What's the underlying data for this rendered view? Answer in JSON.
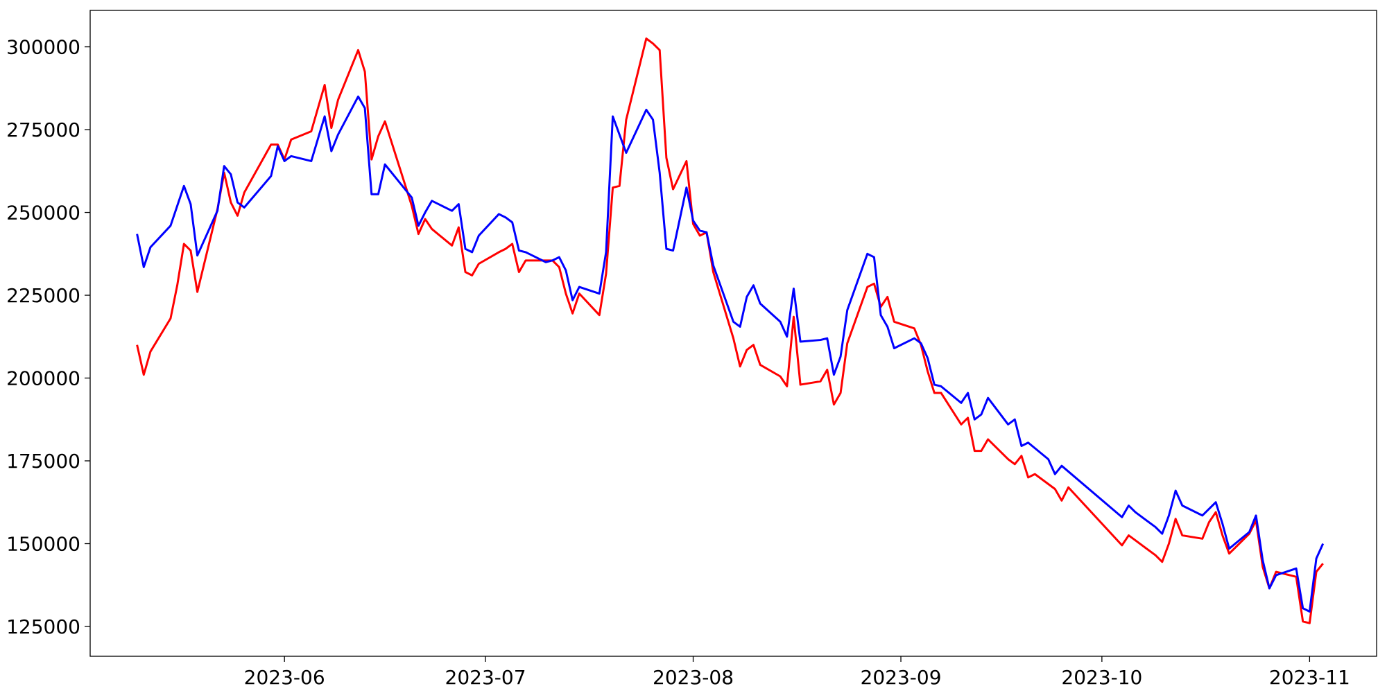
{
  "chart_data": {
    "type": "line",
    "title": "",
    "xlabel": "",
    "ylabel": "",
    "x_axis": {
      "type": "date",
      "range": [
        "2023-05-03",
        "2023-11-11"
      ],
      "ticks": [
        "2023-06-01",
        "2023-07-01",
        "2023-08-01",
        "2023-09-01",
        "2023-10-01",
        "2023-11-01"
      ],
      "tick_labels": [
        "2023-06",
        "2023-07",
        "2023-08",
        "2023-09",
        "2023-10",
        "2023-11"
      ]
    },
    "y_axis": {
      "range": [
        116000,
        311000
      ],
      "ticks": [
        125000,
        150000,
        175000,
        200000,
        225000,
        250000,
        275000,
        300000
      ],
      "tick_labels": [
        "125000",
        "150000",
        "175000",
        "200000",
        "225000",
        "250000",
        "275000",
        "300000"
      ]
    },
    "grid": false,
    "legend": "none",
    "series": [
      {
        "color": "#ff0000",
        "points": [
          [
            "2023-05-10",
            210000
          ],
          [
            "2023-05-11",
            201000
          ],
          [
            "2023-05-12",
            208000
          ],
          [
            "2023-05-15",
            218000
          ],
          [
            "2023-05-16",
            228000
          ],
          [
            "2023-05-17",
            240500
          ],
          [
            "2023-05-18",
            238500
          ],
          [
            "2023-05-19",
            226000
          ],
          [
            "2023-05-22",
            251000
          ],
          [
            "2023-05-23",
            262000
          ],
          [
            "2023-05-24",
            253000
          ],
          [
            "2023-05-25",
            249000
          ],
          [
            "2023-05-26",
            256000
          ],
          [
            "2023-05-30",
            270500
          ],
          [
            "2023-05-31",
            270500
          ],
          [
            "2023-06-01",
            266000
          ],
          [
            "2023-06-02",
            272000
          ],
          [
            "2023-06-05",
            274500
          ],
          [
            "2023-06-07",
            288500
          ],
          [
            "2023-06-08",
            275500
          ],
          [
            "2023-06-09",
            284000
          ],
          [
            "2023-06-12",
            299000
          ],
          [
            "2023-06-13",
            292500
          ],
          [
            "2023-06-14",
            266000
          ],
          [
            "2023-06-15",
            273000
          ],
          [
            "2023-06-16",
            277500
          ],
          [
            "2023-06-20",
            252000
          ],
          [
            "2023-06-21",
            243500
          ],
          [
            "2023-06-22",
            248000
          ],
          [
            "2023-06-23",
            245000
          ],
          [
            "2023-06-26",
            240000
          ],
          [
            "2023-06-27",
            245500
          ],
          [
            "2023-06-28",
            232000
          ],
          [
            "2023-06-29",
            231000
          ],
          [
            "2023-06-30",
            234500
          ],
          [
            "2023-07-03",
            238000
          ],
          [
            "2023-07-04",
            239000
          ],
          [
            "2023-07-05",
            240500
          ],
          [
            "2023-07-06",
            232000
          ],
          [
            "2023-07-07",
            235500
          ],
          [
            "2023-07-10",
            235500
          ],
          [
            "2023-07-11",
            235500
          ],
          [
            "2023-07-12",
            233500
          ],
          [
            "2023-07-13",
            225500
          ],
          [
            "2023-07-14",
            219500
          ],
          [
            "2023-07-15",
            225500
          ],
          [
            "2023-07-18",
            219000
          ],
          [
            "2023-07-19",
            231500
          ],
          [
            "2023-07-20",
            257500
          ],
          [
            "2023-07-21",
            258000
          ],
          [
            "2023-07-22",
            278000
          ],
          [
            "2023-07-25",
            302500
          ],
          [
            "2023-07-26",
            301000
          ],
          [
            "2023-07-27",
            299000
          ],
          [
            "2023-07-28",
            266500
          ],
          [
            "2023-07-29",
            257000
          ],
          [
            "2023-07-31",
            265500
          ],
          [
            "2023-08-01",
            246500
          ],
          [
            "2023-08-02",
            243000
          ],
          [
            "2023-08-03",
            244000
          ],
          [
            "2023-08-04",
            232000
          ],
          [
            "2023-08-07",
            212000
          ],
          [
            "2023-08-08",
            203500
          ],
          [
            "2023-08-09",
            208500
          ],
          [
            "2023-08-10",
            210000
          ],
          [
            "2023-08-11",
            204000
          ],
          [
            "2023-08-14",
            200500
          ],
          [
            "2023-08-15",
            197500
          ],
          [
            "2023-08-16",
            218500
          ],
          [
            "2023-08-17",
            198000
          ],
          [
            "2023-08-20",
            199000
          ],
          [
            "2023-08-21",
            202500
          ],
          [
            "2023-08-22",
            192000
          ],
          [
            "2023-08-23",
            195500
          ],
          [
            "2023-08-24",
            210500
          ],
          [
            "2023-08-27",
            227500
          ],
          [
            "2023-08-28",
            228500
          ],
          [
            "2023-08-29",
            221500
          ],
          [
            "2023-08-30",
            224500
          ],
          [
            "2023-08-31",
            217000
          ],
          [
            "2023-09-03",
            215000
          ],
          [
            "2023-09-04",
            210000
          ],
          [
            "2023-09-05",
            202000
          ],
          [
            "2023-09-06",
            195500
          ],
          [
            "2023-09-07",
            195500
          ],
          [
            "2023-09-10",
            186000
          ],
          [
            "2023-09-11",
            188000
          ],
          [
            "2023-09-12",
            178000
          ],
          [
            "2023-09-13",
            178000
          ],
          [
            "2023-09-14",
            181500
          ],
          [
            "2023-09-17",
            175500
          ],
          [
            "2023-09-18",
            174000
          ],
          [
            "2023-09-19",
            176500
          ],
          [
            "2023-09-20",
            170000
          ],
          [
            "2023-09-21",
            171000
          ],
          [
            "2023-09-24",
            166500
          ],
          [
            "2023-09-25",
            163000
          ],
          [
            "2023-09-26",
            167000
          ],
          [
            "2023-10-04",
            149500
          ],
          [
            "2023-10-05",
            152500
          ],
          [
            "2023-10-06",
            151000
          ],
          [
            "2023-10-09",
            146500
          ],
          [
            "2023-10-10",
            144500
          ],
          [
            "2023-10-11",
            150000
          ],
          [
            "2023-10-12",
            157500
          ],
          [
            "2023-10-13",
            152500
          ],
          [
            "2023-10-16",
            151500
          ],
          [
            "2023-10-17",
            156500
          ],
          [
            "2023-10-18",
            159500
          ],
          [
            "2023-10-19",
            152500
          ],
          [
            "2023-10-20",
            147000
          ],
          [
            "2023-10-23",
            153000
          ],
          [
            "2023-10-24",
            157000
          ],
          [
            "2023-10-25",
            143000
          ],
          [
            "2023-10-26",
            136500
          ],
          [
            "2023-10-27",
            141500
          ],
          [
            "2023-10-30",
            140000
          ],
          [
            "2023-10-31",
            126500
          ],
          [
            "2023-11-01",
            126000
          ],
          [
            "2023-11-02",
            141500
          ],
          [
            "2023-11-03",
            144000
          ]
        ]
      },
      {
        "color": "#0000ff",
        "points": [
          [
            "2023-05-10",
            243500
          ],
          [
            "2023-05-11",
            233500
          ],
          [
            "2023-05-12",
            239500
          ],
          [
            "2023-05-15",
            246000
          ],
          [
            "2023-05-16",
            252000
          ],
          [
            "2023-05-17",
            258000
          ],
          [
            "2023-05-18",
            252500
          ],
          [
            "2023-05-19",
            237000
          ],
          [
            "2023-05-22",
            250500
          ],
          [
            "2023-05-23",
            264000
          ],
          [
            "2023-05-24",
            261500
          ],
          [
            "2023-05-25",
            253000
          ],
          [
            "2023-05-26",
            251500
          ],
          [
            "2023-05-30",
            261000
          ],
          [
            "2023-05-31",
            270000
          ],
          [
            "2023-06-01",
            265500
          ],
          [
            "2023-06-02",
            267000
          ],
          [
            "2023-06-05",
            265500
          ],
          [
            "2023-06-07",
            279000
          ],
          [
            "2023-06-08",
            268500
          ],
          [
            "2023-06-09",
            273500
          ],
          [
            "2023-06-12",
            285000
          ],
          [
            "2023-06-13",
            281500
          ],
          [
            "2023-06-14",
            255500
          ],
          [
            "2023-06-15",
            255500
          ],
          [
            "2023-06-16",
            264500
          ],
          [
            "2023-06-20",
            254500
          ],
          [
            "2023-06-21",
            246000
          ],
          [
            "2023-06-22",
            250000
          ],
          [
            "2023-06-23",
            253500
          ],
          [
            "2023-06-26",
            250500
          ],
          [
            "2023-06-27",
            252500
          ],
          [
            "2023-06-28",
            239000
          ],
          [
            "2023-06-29",
            238000
          ],
          [
            "2023-06-30",
            243000
          ],
          [
            "2023-07-03",
            249500
          ],
          [
            "2023-07-04",
            248500
          ],
          [
            "2023-07-05",
            247000
          ],
          [
            "2023-07-06",
            238500
          ],
          [
            "2023-07-07",
            238000
          ],
          [
            "2023-07-10",
            235000
          ],
          [
            "2023-07-11",
            235500
          ],
          [
            "2023-07-12",
            236500
          ],
          [
            "2023-07-13",
            232500
          ],
          [
            "2023-07-14",
            223500
          ],
          [
            "2023-07-15",
            227500
          ],
          [
            "2023-07-18",
            225500
          ],
          [
            "2023-07-19",
            238000
          ],
          [
            "2023-07-20",
            279000
          ],
          [
            "2023-07-21",
            273500
          ],
          [
            "2023-07-22",
            268000
          ],
          [
            "2023-07-25",
            281000
          ],
          [
            "2023-07-26",
            278000
          ],
          [
            "2023-07-27",
            262000
          ],
          [
            "2023-07-28",
            239000
          ],
          [
            "2023-07-29",
            238500
          ],
          [
            "2023-07-31",
            257500
          ],
          [
            "2023-08-01",
            247500
          ],
          [
            "2023-08-02",
            244500
          ],
          [
            "2023-08-03",
            244000
          ],
          [
            "2023-08-04",
            234000
          ],
          [
            "2023-08-07",
            217000
          ],
          [
            "2023-08-08",
            215500
          ],
          [
            "2023-08-09",
            224500
          ],
          [
            "2023-08-10",
            228000
          ],
          [
            "2023-08-11",
            222500
          ],
          [
            "2023-08-14",
            217000
          ],
          [
            "2023-08-15",
            212500
          ],
          [
            "2023-08-16",
            227000
          ],
          [
            "2023-08-17",
            211000
          ],
          [
            "2023-08-20",
            211500
          ],
          [
            "2023-08-21",
            212000
          ],
          [
            "2023-08-22",
            201000
          ],
          [
            "2023-08-23",
            206500
          ],
          [
            "2023-08-24",
            220500
          ],
          [
            "2023-08-27",
            237500
          ],
          [
            "2023-08-28",
            236500
          ],
          [
            "2023-08-29",
            219000
          ],
          [
            "2023-08-30",
            215500
          ],
          [
            "2023-08-31",
            209000
          ],
          [
            "2023-09-03",
            212000
          ],
          [
            "2023-09-04",
            210500
          ],
          [
            "2023-09-05",
            206000
          ],
          [
            "2023-09-06",
            198000
          ],
          [
            "2023-09-07",
            197500
          ],
          [
            "2023-09-10",
            192500
          ],
          [
            "2023-09-11",
            195500
          ],
          [
            "2023-09-12",
            187500
          ],
          [
            "2023-09-13",
            189000
          ],
          [
            "2023-09-14",
            194000
          ],
          [
            "2023-09-17",
            186000
          ],
          [
            "2023-09-18",
            187500
          ],
          [
            "2023-09-19",
            179500
          ],
          [
            "2023-09-20",
            180500
          ],
          [
            "2023-09-23",
            175500
          ],
          [
            "2023-09-24",
            171000
          ],
          [
            "2023-09-25",
            173500
          ],
          [
            "2023-10-04",
            158000
          ],
          [
            "2023-10-05",
            161500
          ],
          [
            "2023-10-06",
            159500
          ],
          [
            "2023-10-09",
            155000
          ],
          [
            "2023-10-10",
            153000
          ],
          [
            "2023-10-11",
            158500
          ],
          [
            "2023-10-12",
            166000
          ],
          [
            "2023-10-13",
            161500
          ],
          [
            "2023-10-16",
            158500
          ],
          [
            "2023-10-17",
            160500
          ],
          [
            "2023-10-18",
            162500
          ],
          [
            "2023-10-19",
            156000
          ],
          [
            "2023-10-20",
            148500
          ],
          [
            "2023-10-23",
            153500
          ],
          [
            "2023-10-24",
            158500
          ],
          [
            "2023-10-25",
            145000
          ],
          [
            "2023-10-26",
            136500
          ],
          [
            "2023-10-27",
            140500
          ],
          [
            "2023-10-30",
            142500
          ],
          [
            "2023-10-31",
            130500
          ],
          [
            "2023-11-01",
            129500
          ],
          [
            "2023-11-02",
            145500
          ],
          [
            "2023-11-03",
            150000
          ]
        ]
      }
    ]
  }
}
